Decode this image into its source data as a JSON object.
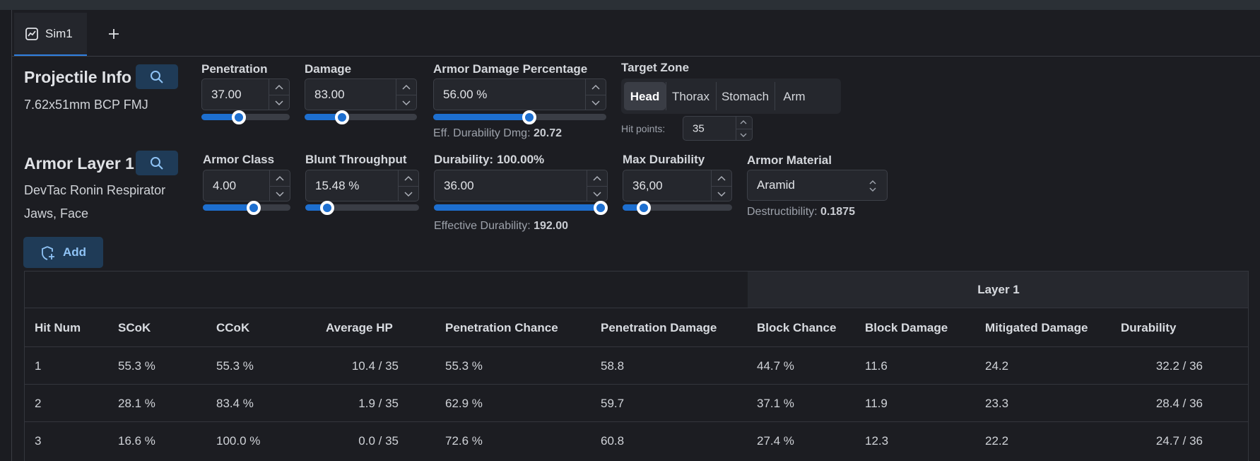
{
  "tab": "Sim1",
  "projectile": {
    "title": "Projectile Info",
    "name": "7.62x51mm BCP FMJ",
    "fields": [
      {
        "label": "Penetration",
        "value": "37.00"
      },
      {
        "label": "Damage",
        "value": "83.00"
      },
      {
        "label": "Armor Damage Percentage",
        "value": "56.00 %"
      }
    ],
    "eff_durability_dmg": {
      "label": "Eff. Durability Dmg:",
      "value": "20.72"
    }
  },
  "target_zone": {
    "label": "Target Zone",
    "options": [
      "Head",
      "Thorax",
      "Stomach",
      "Arm"
    ],
    "hit_points": {
      "label": "Hit points:",
      "value": "35"
    }
  },
  "armor_layer": {
    "title": "Armor Layer 1",
    "name_lines": [
      "DevTac Ronin Respirator",
      "Jaws, Face"
    ],
    "fields": [
      {
        "label": "Armor Class",
        "value": "4.00"
      },
      {
        "label": "Blunt Throughput",
        "value": "15.48 %"
      },
      {
        "label": "Durability:",
        "label_value": "100.00%",
        "value": "36.00"
      },
      {
        "label": "Max Durability",
        "value": "36,00"
      }
    ],
    "material": {
      "label": "Armor Material",
      "value": "Aramid"
    },
    "destructibility": {
      "label": "Destructibility:",
      "value": "0.1875"
    },
    "effective_durability": {
      "label": "Effective Durability:",
      "value": "192.00"
    }
  },
  "add_button": "Add",
  "table": {
    "group_header": "Layer 1",
    "headers": [
      "Hit Num",
      "SCoK",
      "CCoK",
      "Average HP",
      "Penetration Chance",
      "Penetration Damage",
      "Block Chance",
      "Block Damage",
      "Mitigated Damage",
      "Durability"
    ],
    "rows": [
      [
        "1",
        "55.3 %",
        "55.3 %",
        "10.4 / 35",
        "55.3 %",
        "58.8",
        "44.7 %",
        "11.6",
        "24.2",
        "32.2 / 36"
      ],
      [
        "2",
        "28.1 %",
        "83.4 %",
        "1.9 / 35",
        "62.9 %",
        "59.7",
        "37.1 %",
        "11.9",
        "23.3",
        "28.4 / 36"
      ],
      [
        "3",
        "16.6 %",
        "100.0 %",
        "0.0 / 35",
        "72.6 %",
        "60.8",
        "27.4 %",
        "12.3",
        "22.2",
        "24.7 / 36"
      ]
    ]
  }
}
